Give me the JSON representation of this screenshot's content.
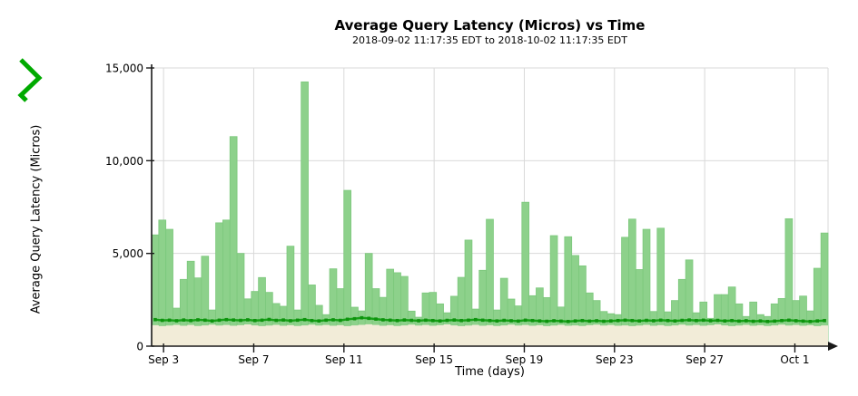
{
  "page": {
    "background": "#ffffff"
  },
  "icon": {
    "name": "trend-zigzag",
    "color": "#00aa00"
  },
  "chart_data": {
    "type": "bar",
    "title": "Average Query Latency (Micros) vs Time",
    "subtitle": "2018-09-02 11:17:35 EDT to 2018-10-02 11:17:35 EDT",
    "xlabel": "Time (days)",
    "ylabel": "Average Query Latency (Micros)",
    "ylim": [
      0,
      15000
    ],
    "x_range": {
      "start_label": "2018-09-02 11:17:35 EDT",
      "end_label": "2018-10-02 11:17:35 EDT",
      "hours": 720
    },
    "grid": true,
    "legend": false,
    "yticks": [
      {
        "label": "0",
        "value": 0
      },
      {
        "label": "5,000",
        "value": 5000
      },
      {
        "label": "10,000",
        "value": 10000
      },
      {
        "label": "15,000",
        "value": 15000
      }
    ],
    "xticks": [
      {
        "label": "Sep 3",
        "hours": 12.7
      },
      {
        "label": "Sep 7",
        "hours": 108.7
      },
      {
        "label": "Sep 11",
        "hours": 204.7
      },
      {
        "label": "Sep 15",
        "hours": 300.7
      },
      {
        "label": "Sep 19",
        "hours": 396.7
      },
      {
        "label": "Sep 23",
        "hours": 492.7
      },
      {
        "label": "Sep 27",
        "hours": 588.7
      },
      {
        "label": "Oct 1",
        "hours": 684.7
      }
    ],
    "series": [
      {
        "name": "avg-query-latency-bars",
        "type": "bar",
        "color": "#8dd18b",
        "edge_color": "#7cc87c",
        "values": [
          6000,
          6800,
          6300,
          2050,
          3600,
          4580,
          3680,
          4850,
          1950,
          6650,
          6800,
          11300,
          5000,
          2550,
          2950,
          3700,
          2900,
          2300,
          2150,
          5390,
          1950,
          14250,
          3300,
          2200,
          1700,
          4170,
          3100,
          8400,
          2100,
          1900,
          5000,
          3100,
          2630,
          4150,
          3960,
          3760,
          1890,
          1560,
          2870,
          2900,
          2280,
          1800,
          2690,
          3710,
          5720,
          2000,
          4090,
          6840,
          1950,
          3660,
          2540,
          2170,
          7760,
          2720,
          3140,
          2620,
          5960,
          2110,
          5900,
          4890,
          4330,
          2870,
          2460,
          1870,
          1750,
          1700,
          5870,
          6850,
          4130,
          6300,
          1870,
          6360,
          1850,
          2460,
          3600,
          4650,
          1800,
          2380,
          1500,
          2780,
          2780,
          3190,
          2280,
          1600,
          2380,
          1700,
          1600,
          2280,
          2570,
          6870,
          2460,
          2700,
          1900,
          4200,
          6100
        ]
      },
      {
        "name": "baseline-trend-line",
        "type": "line",
        "color": "#17a017",
        "marker_color": "#0d930d",
        "values": [
          1430,
          1390,
          1400,
          1370,
          1410,
          1380,
          1420,
          1400,
          1360,
          1400,
          1430,
          1410,
          1390,
          1420,
          1380,
          1400,
          1440,
          1390,
          1410,
          1370,
          1400,
          1430,
          1380,
          1360,
          1400,
          1420,
          1390,
          1450,
          1480,
          1530,
          1500,
          1460,
          1420,
          1400,
          1380,
          1410,
          1390,
          1370,
          1400,
          1380,
          1360,
          1390,
          1410,
          1380,
          1400,
          1430,
          1400,
          1380,
          1360,
          1390,
          1370,
          1350,
          1400,
          1380,
          1360,
          1340,
          1370,
          1350,
          1330,
          1360,
          1380,
          1350,
          1370,
          1340,
          1360,
          1380,
          1400,
          1380,
          1360,
          1390,
          1370,
          1400,
          1380,
          1360,
          1390,
          1410,
          1380,
          1400,
          1370,
          1390,
          1360,
          1380,
          1350,
          1370,
          1340,
          1360,
          1330,
          1350,
          1380,
          1400,
          1370,
          1350,
          1330,
          1360,
          1380
        ]
      },
      {
        "name": "lower-band-area",
        "type": "area",
        "color": "#f2ecd8",
        "values": [
          1130,
          1080,
          1110,
          1150,
          1100,
          1140,
          1090,
          1120,
          1160,
          1110,
          1140,
          1100,
          1130,
          1170,
          1120,
          1080,
          1110,
          1150,
          1100,
          1130,
          1090,
          1120,
          1160,
          1110,
          1140,
          1100,
          1130,
          1080,
          1120,
          1150,
          1180,
          1140,
          1100,
          1130,
          1090,
          1120,
          1160,
          1110,
          1140,
          1100,
          1130,
          1170,
          1120,
          1080,
          1110,
          1150,
          1100,
          1130,
          1090,
          1120,
          1160,
          1110,
          1140,
          1100,
          1130,
          1080,
          1110,
          1150,
          1100,
          1120,
          1090,
          1130,
          1160,
          1110,
          1140,
          1100,
          1120,
          1080,
          1110,
          1150,
          1100,
          1130,
          1090,
          1120,
          1160,
          1110,
          1140,
          1100,
          1130,
          1170,
          1120,
          1080,
          1110,
          1150,
          1100,
          1130,
          1090,
          1120,
          1160,
          1110,
          1140,
          1100,
          1130,
          1080,
          1120
        ]
      }
    ],
    "style": {
      "grid_color": "#d9d9d9",
      "axis_color": "#1a1a1a",
      "text_color": "#000000",
      "plot_background": "#ffffff"
    }
  }
}
